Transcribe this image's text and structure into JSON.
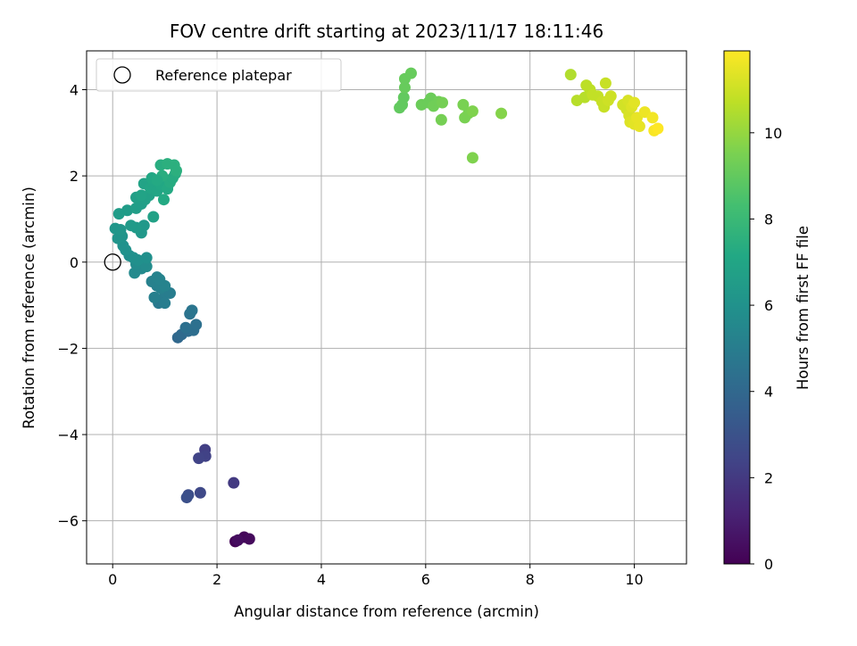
{
  "chart_data": {
    "type": "scatter",
    "title": "FOV centre drift starting at 2023/11/17 18:11:46",
    "xlabel": "Angular distance from reference (arcmin)",
    "ylabel": "Rotation from reference (arcmin)",
    "xlim": [
      -0.5,
      11.0
    ],
    "ylim": [
      -7.0,
      4.9
    ],
    "xticks": [
      0,
      2,
      4,
      6,
      8,
      10
    ],
    "yticks": [
      -6,
      -4,
      -2,
      0,
      2,
      4
    ],
    "grid": true,
    "legend_position": "upper-left",
    "legend": [
      {
        "label": "Reference platepar",
        "marker": "open-circle"
      }
    ],
    "reference_point": {
      "x": 0,
      "y": 0
    },
    "colorbar": {
      "label": "Hours from first FF file",
      "colormap": "viridis",
      "range": [
        0,
        11.9
      ],
      "ticks": [
        0,
        2,
        4,
        6,
        8,
        10
      ]
    },
    "points": [
      {
        "x": 2.35,
        "y": -6.48,
        "c": 0.1
      },
      {
        "x": 2.52,
        "y": -6.38,
        "c": 0.2
      },
      {
        "x": 2.62,
        "y": -6.42,
        "c": 0.3
      },
      {
        "x": 2.4,
        "y": -6.45,
        "c": 0.4
      },
      {
        "x": 2.32,
        "y": -5.12,
        "c": 2.0
      },
      {
        "x": 1.77,
        "y": -4.35,
        "c": 2.2
      },
      {
        "x": 1.78,
        "y": -4.5,
        "c": 2.3
      },
      {
        "x": 1.65,
        "y": -4.55,
        "c": 2.4
      },
      {
        "x": 1.68,
        "y": -5.35,
        "c": 2.6
      },
      {
        "x": 1.45,
        "y": -5.4,
        "c": 2.8
      },
      {
        "x": 1.42,
        "y": -5.46,
        "c": 2.9
      },
      {
        "x": 1.25,
        "y": -1.75,
        "c": 4.0
      },
      {
        "x": 1.32,
        "y": -1.68,
        "c": 4.1
      },
      {
        "x": 1.45,
        "y": -1.6,
        "c": 4.2
      },
      {
        "x": 1.55,
        "y": -1.58,
        "c": 4.3
      },
      {
        "x": 1.6,
        "y": -1.45,
        "c": 4.4
      },
      {
        "x": 1.48,
        "y": -1.2,
        "c": 4.5
      },
      {
        "x": 1.52,
        "y": -1.12,
        "c": 4.6
      },
      {
        "x": 1.4,
        "y": -1.52,
        "c": 4.4
      },
      {
        "x": 0.88,
        "y": -0.95,
        "c": 4.8
      },
      {
        "x": 0.95,
        "y": -0.85,
        "c": 4.9
      },
      {
        "x": 1.0,
        "y": -0.7,
        "c": 5.0
      },
      {
        "x": 1.1,
        "y": -0.72,
        "c": 5.0
      },
      {
        "x": 0.8,
        "y": -0.82,
        "c": 5.1
      },
      {
        "x": 0.85,
        "y": -0.55,
        "c": 5.1
      },
      {
        "x": 0.75,
        "y": -0.45,
        "c": 5.2
      },
      {
        "x": 0.92,
        "y": -0.6,
        "c": 5.2
      },
      {
        "x": 1.0,
        "y": -0.55,
        "c": 5.3
      },
      {
        "x": 0.85,
        "y": -0.35,
        "c": 5.3
      },
      {
        "x": 1.0,
        "y": -0.95,
        "c": 5.0
      },
      {
        "x": 0.9,
        "y": -0.4,
        "c": 5.3
      },
      {
        "x": 0.42,
        "y": -0.25,
        "c": 5.6
      },
      {
        "x": 0.55,
        "y": -0.15,
        "c": 5.6
      },
      {
        "x": 0.45,
        "y": -0.05,
        "c": 5.7
      },
      {
        "x": 0.65,
        "y": -0.1,
        "c": 5.7
      },
      {
        "x": 0.32,
        "y": 0.15,
        "c": 5.8
      },
      {
        "x": 0.4,
        "y": 0.1,
        "c": 5.9
      },
      {
        "x": 0.48,
        "y": 0.05,
        "c": 5.9
      },
      {
        "x": 0.65,
        "y": 0.1,
        "c": 5.9
      },
      {
        "x": 0.2,
        "y": 0.38,
        "c": 6.0
      },
      {
        "x": 0.25,
        "y": 0.28,
        "c": 6.0
      },
      {
        "x": 0.1,
        "y": 0.55,
        "c": 6.1
      },
      {
        "x": 0.18,
        "y": 0.6,
        "c": 6.1
      },
      {
        "x": 0.05,
        "y": 0.78,
        "c": 6.2
      },
      {
        "x": 0.15,
        "y": 0.75,
        "c": 6.2
      },
      {
        "x": 0.55,
        "y": 0.68,
        "c": 6.3
      },
      {
        "x": 0.6,
        "y": 0.85,
        "c": 6.3
      },
      {
        "x": 0.45,
        "y": 0.8,
        "c": 6.4
      },
      {
        "x": 0.35,
        "y": 0.85,
        "c": 6.4
      },
      {
        "x": 0.28,
        "y": 1.2,
        "c": 6.5
      },
      {
        "x": 0.12,
        "y": 1.12,
        "c": 6.5
      },
      {
        "x": 0.45,
        "y": 1.25,
        "c": 6.6
      },
      {
        "x": 0.55,
        "y": 1.35,
        "c": 6.6
      },
      {
        "x": 0.62,
        "y": 1.45,
        "c": 6.7
      },
      {
        "x": 0.45,
        "y": 1.5,
        "c": 6.7
      },
      {
        "x": 0.78,
        "y": 1.05,
        "c": 6.8
      },
      {
        "x": 0.7,
        "y": 1.55,
        "c": 6.8
      },
      {
        "x": 0.55,
        "y": 1.55,
        "c": 6.9
      },
      {
        "x": 0.6,
        "y": 1.82,
        "c": 6.9
      },
      {
        "x": 0.72,
        "y": 1.72,
        "c": 7.0
      },
      {
        "x": 0.78,
        "y": 1.85,
        "c": 7.0
      },
      {
        "x": 0.85,
        "y": 1.65,
        "c": 7.0
      },
      {
        "x": 0.75,
        "y": 1.95,
        "c": 7.1
      },
      {
        "x": 0.92,
        "y": 1.8,
        "c": 7.1
      },
      {
        "x": 0.98,
        "y": 1.45,
        "c": 7.2
      },
      {
        "x": 1.05,
        "y": 1.7,
        "c": 7.2
      },
      {
        "x": 1.1,
        "y": 1.85,
        "c": 7.3
      },
      {
        "x": 1.15,
        "y": 1.95,
        "c": 7.3
      },
      {
        "x": 1.2,
        "y": 2.05,
        "c": 7.3
      },
      {
        "x": 0.95,
        "y": 2.0,
        "c": 7.4
      },
      {
        "x": 0.92,
        "y": 2.25,
        "c": 7.4
      },
      {
        "x": 1.05,
        "y": 2.28,
        "c": 7.5
      },
      {
        "x": 1.18,
        "y": 2.25,
        "c": 7.5
      },
      {
        "x": 1.22,
        "y": 2.12,
        "c": 7.5
      },
      {
        "x": 0.85,
        "y": 1.9,
        "c": 7.2
      },
      {
        "x": 5.5,
        "y": 3.58,
        "c": 9.0
      },
      {
        "x": 5.55,
        "y": 3.65,
        "c": 9.0
      },
      {
        "x": 5.58,
        "y": 3.82,
        "c": 9.0
      },
      {
        "x": 5.6,
        "y": 4.05,
        "c": 9.1
      },
      {
        "x": 5.6,
        "y": 4.25,
        "c": 9.1
      },
      {
        "x": 5.72,
        "y": 4.38,
        "c": 9.1
      },
      {
        "x": 5.92,
        "y": 3.65,
        "c": 9.2
      },
      {
        "x": 6.05,
        "y": 3.7,
        "c": 9.2
      },
      {
        "x": 6.1,
        "y": 3.8,
        "c": 9.2
      },
      {
        "x": 6.15,
        "y": 3.62,
        "c": 9.3
      },
      {
        "x": 6.25,
        "y": 3.72,
        "c": 9.3
      },
      {
        "x": 6.32,
        "y": 3.7,
        "c": 9.4
      },
      {
        "x": 6.3,
        "y": 3.3,
        "c": 9.4
      },
      {
        "x": 6.72,
        "y": 3.65,
        "c": 9.5
      },
      {
        "x": 6.75,
        "y": 3.35,
        "c": 9.5
      },
      {
        "x": 6.82,
        "y": 3.45,
        "c": 9.5
      },
      {
        "x": 6.9,
        "y": 3.5,
        "c": 9.6
      },
      {
        "x": 6.9,
        "y": 2.42,
        "c": 9.6
      },
      {
        "x": 7.45,
        "y": 3.45,
        "c": 9.7
      },
      {
        "x": 8.78,
        "y": 4.35,
        "c": 10.5
      },
      {
        "x": 8.9,
        "y": 3.75,
        "c": 10.6
      },
      {
        "x": 9.05,
        "y": 3.82,
        "c": 10.6
      },
      {
        "x": 9.08,
        "y": 4.1,
        "c": 10.7
      },
      {
        "x": 9.15,
        "y": 4.0,
        "c": 10.7
      },
      {
        "x": 9.2,
        "y": 3.88,
        "c": 10.8
      },
      {
        "x": 9.3,
        "y": 3.85,
        "c": 10.8
      },
      {
        "x": 9.38,
        "y": 3.72,
        "c": 10.9
      },
      {
        "x": 9.42,
        "y": 3.6,
        "c": 10.9
      },
      {
        "x": 9.45,
        "y": 4.15,
        "c": 10.9
      },
      {
        "x": 9.5,
        "y": 3.75,
        "c": 11.0
      },
      {
        "x": 9.55,
        "y": 3.85,
        "c": 11.0
      },
      {
        "x": 9.78,
        "y": 3.65,
        "c": 11.1
      },
      {
        "x": 9.85,
        "y": 3.55,
        "c": 11.1
      },
      {
        "x": 9.88,
        "y": 3.75,
        "c": 11.2
      },
      {
        "x": 9.9,
        "y": 3.4,
        "c": 11.2
      },
      {
        "x": 9.92,
        "y": 3.25,
        "c": 11.3
      },
      {
        "x": 9.95,
        "y": 3.6,
        "c": 11.3
      },
      {
        "x": 10.0,
        "y": 3.7,
        "c": 11.4
      },
      {
        "x": 10.0,
        "y": 3.2,
        "c": 11.4
      },
      {
        "x": 10.05,
        "y": 3.35,
        "c": 11.5
      },
      {
        "x": 10.1,
        "y": 3.15,
        "c": 11.5
      },
      {
        "x": 10.2,
        "y": 3.48,
        "c": 11.6
      },
      {
        "x": 10.35,
        "y": 3.35,
        "c": 11.7
      },
      {
        "x": 10.38,
        "y": 3.05,
        "c": 11.8
      },
      {
        "x": 10.45,
        "y": 3.1,
        "c": 11.9
      }
    ]
  }
}
